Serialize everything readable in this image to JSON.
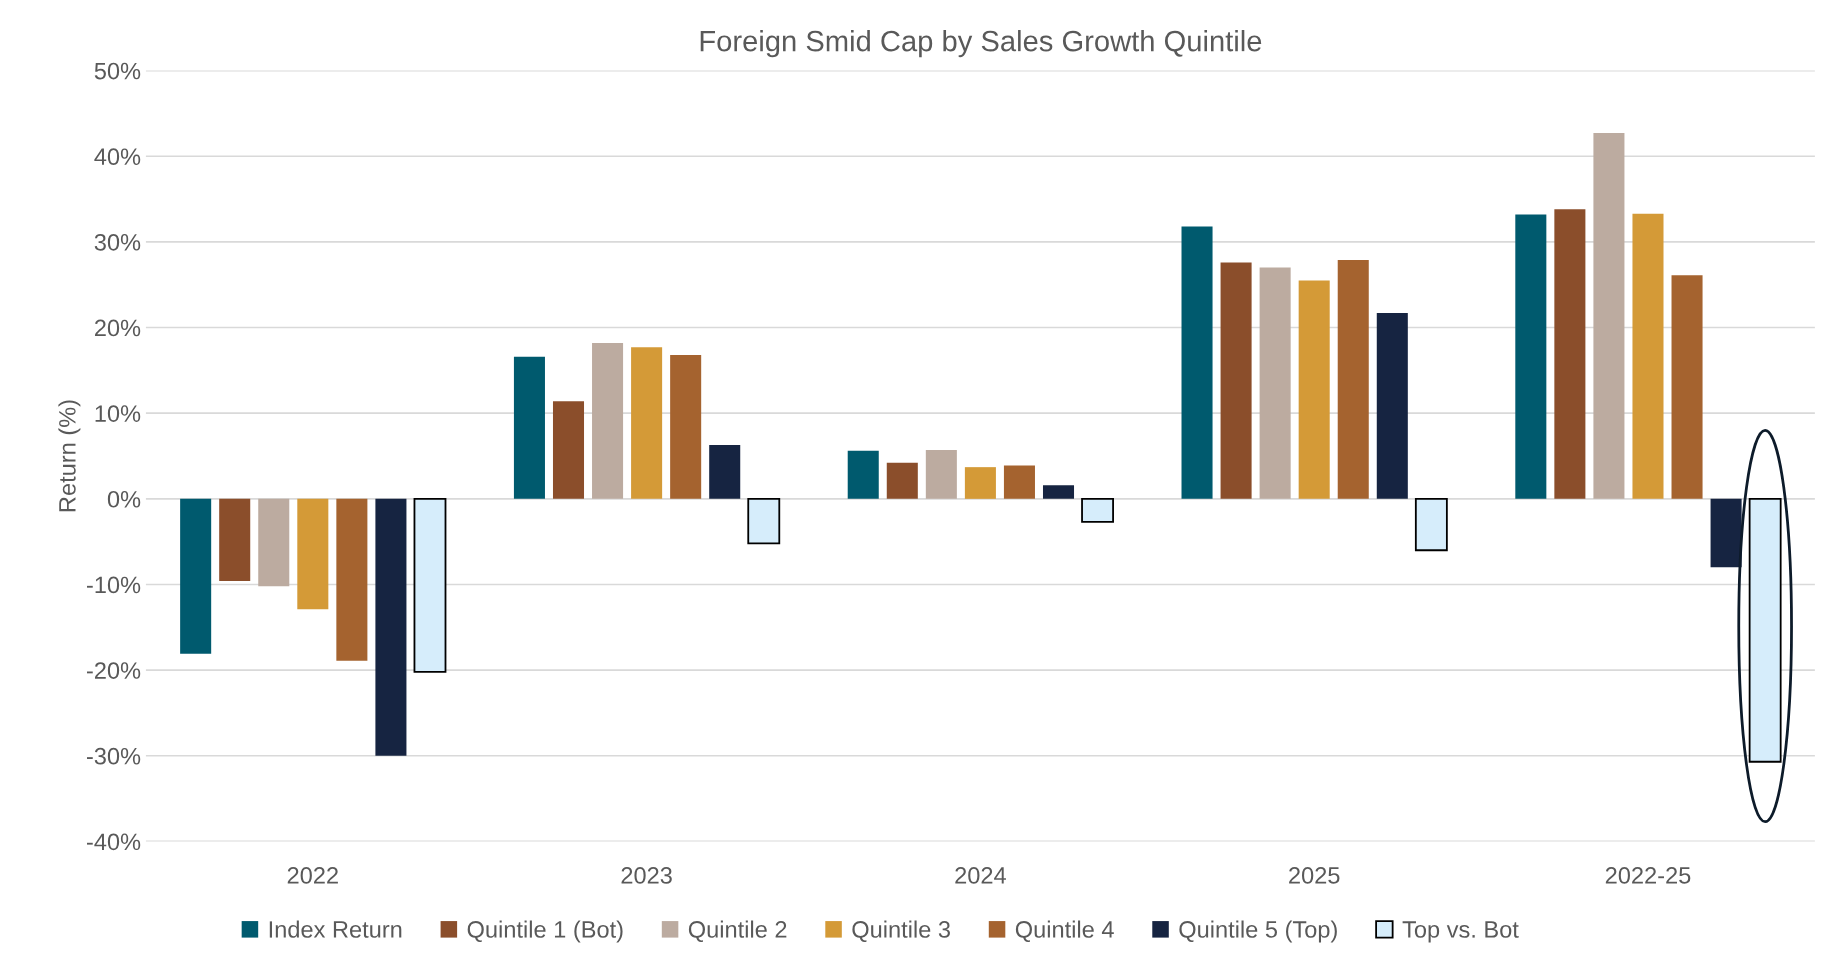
{
  "chart_data": {
    "type": "bar",
    "title": "Foreign Smid Cap by Sales Growth Quintile",
    "ylabel": "Return (%)",
    "categories": [
      "2022",
      "2023",
      "2024",
      "2025",
      "2022-25"
    ],
    "series": [
      {
        "name": "Index Return",
        "color": "#005a6e",
        "values": [
          -18.1,
          16.6,
          5.6,
          31.8,
          33.2
        ]
      },
      {
        "name": "Quintile 1 (Bot)",
        "color": "#8b4e2b",
        "values": [
          -9.6,
          11.4,
          4.2,
          27.6,
          33.8
        ]
      },
      {
        "name": "Quintile 2",
        "color": "#bcaba0",
        "values": [
          -10.2,
          18.2,
          5.7,
          27.0,
          42.7
        ]
      },
      {
        "name": "Quintile 3",
        "color": "#d49a37",
        "values": [
          -12.9,
          17.7,
          3.7,
          25.5,
          33.3
        ]
      },
      {
        "name": "Quintile 4",
        "color": "#a5632f",
        "values": [
          -18.9,
          16.8,
          3.9,
          27.9,
          26.1
        ]
      },
      {
        "name": "Quintile 5 (Top)",
        "color": "#162441",
        "values": [
          -30.0,
          6.3,
          1.6,
          21.7,
          -8.0
        ]
      },
      {
        "name": "Top vs. Bot",
        "color": "#d6edfb",
        "values": [
          -20.2,
          -5.2,
          -2.7,
          -6.0,
          -30.7
        ]
      }
    ],
    "ylim": [
      -40,
      50
    ],
    "yticks": [
      {
        "value": -40,
        "label": "-40%"
      },
      {
        "value": -30,
        "label": "-30%"
      },
      {
        "value": -20,
        "label": "-20%"
      },
      {
        "value": -10,
        "label": "-10%"
      },
      {
        "value": 0,
        "label": "0%"
      },
      {
        "value": 10,
        "label": "10%"
      },
      {
        "value": 20,
        "label": "20%"
      },
      {
        "value": 30,
        "label": "30%"
      },
      {
        "value": 40,
        "label": "40%"
      },
      {
        "value": 50,
        "label": "50%"
      }
    ],
    "grid": "y",
    "legend": "bottom"
  }
}
